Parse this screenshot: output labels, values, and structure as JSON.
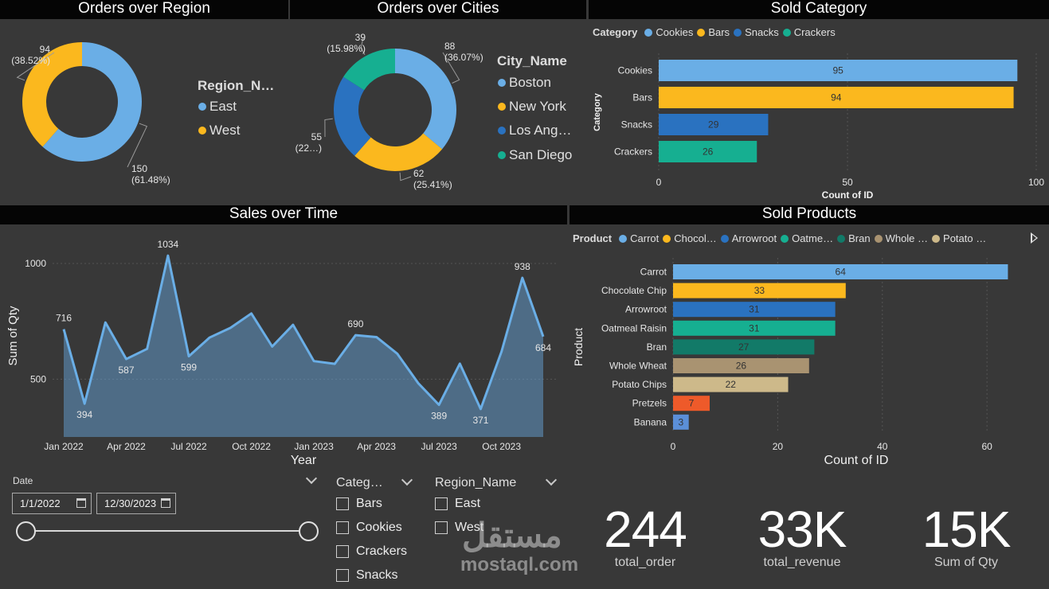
{
  "region_donut": {
    "title": "Orders over Region",
    "legend_title": "Region_N…",
    "slices": [
      {
        "name": "East",
        "value": 150,
        "pct": "(61.48%)",
        "color": "#6aaee6"
      },
      {
        "name": "West",
        "value": 94,
        "pct": "(38.52%)",
        "color": "#fbb81e"
      }
    ]
  },
  "city_donut": {
    "title": "Orders over Cities",
    "legend_title": "City_Name",
    "slices": [
      {
        "name": "Boston",
        "legend": "Boston",
        "value": 88,
        "pct": "(36.07%)",
        "color": "#6aaee6"
      },
      {
        "name": "New York",
        "legend": "New York",
        "value": 62,
        "pct": "(25.41%)",
        "color": "#fbb81e"
      },
      {
        "name": "Los Angeles",
        "legend": "Los Ang…",
        "value": 55,
        "pct": "(22…)",
        "color": "#2a72c0"
      },
      {
        "name": "San Diego",
        "legend": "San Diego",
        "value": 39,
        "pct": "(15.98%)",
        "color": "#16af91"
      }
    ]
  },
  "category_bar": {
    "title": "Sold Category",
    "legend_title": "Category",
    "legend": [
      {
        "name": "Cookies",
        "color": "#6aaee6"
      },
      {
        "name": "Bars",
        "color": "#fbb81e"
      },
      {
        "name": "Snacks",
        "color": "#2a72c0"
      },
      {
        "name": "Crackers",
        "color": "#16af91"
      }
    ],
    "ylabel": "Category",
    "xlabel": "Count of ID",
    "ticks": [
      "0",
      "50",
      "100"
    ]
  },
  "sales_area": {
    "title": "Sales over Time",
    "ylabel": "Sum of Qty",
    "xlabel": "Year",
    "yticks": [
      "1000",
      "500"
    ],
    "xticks": [
      "Jan 2022",
      "Apr 2022",
      "Jul 2022",
      "Oct 2022",
      "Jan 2023",
      "Apr 2023",
      "Jul 2023",
      "Oct 2023"
    ]
  },
  "product_bar": {
    "title": "Sold Products",
    "legend_title": "Product",
    "legend": [
      {
        "name": "Carrot",
        "color": "#6aaee6"
      },
      {
        "name": "Chocol…",
        "color": "#fbb81e"
      },
      {
        "name": "Arrowroot",
        "color": "#2a72c0"
      },
      {
        "name": "Oatme…",
        "color": "#16af91"
      },
      {
        "name": "Bran",
        "color": "#127a68"
      },
      {
        "name": "Whole …",
        "color": "#a99371"
      },
      {
        "name": "Potato …",
        "color": "#cdb98a"
      }
    ],
    "ylabel": "Product",
    "xlabel": "Count of ID",
    "ticks": [
      "0",
      "20",
      "40",
      "60"
    ]
  },
  "chart_data": [
    {
      "type": "pie",
      "title": "Orders over Region",
      "categories": [
        "East",
        "West"
      ],
      "values": [
        150,
        94
      ]
    },
    {
      "type": "pie",
      "title": "Orders over Cities",
      "categories": [
        "Boston",
        "New York",
        "Los Angeles",
        "San Diego"
      ],
      "values": [
        88,
        62,
        55,
        39
      ]
    },
    {
      "type": "bar",
      "title": "Sold Category",
      "categories": [
        "Cookies",
        "Bars",
        "Snacks",
        "Crackers"
      ],
      "values": [
        95,
        94,
        29,
        26
      ],
      "colors": [
        "#6aaee6",
        "#fbb81e",
        "#2a72c0",
        "#16af91"
      ],
      "xlabel": "Count of ID",
      "ylabel": "Category",
      "xlim": [
        0,
        100
      ]
    },
    {
      "type": "area",
      "title": "Sales over Time",
      "x": [
        "2022-01",
        "2022-02",
        "2022-03",
        "2022-04",
        "2022-05",
        "2022-06",
        "2022-07",
        "2022-08",
        "2022-09",
        "2022-10",
        "2022-11",
        "2022-12",
        "2023-01",
        "2023-02",
        "2023-03",
        "2023-04",
        "2023-05",
        "2023-06",
        "2023-07",
        "2023-08",
        "2023-09",
        "2023-10",
        "2023-11",
        "2023-12"
      ],
      "values": [
        716,
        394,
        745,
        587,
        631,
        1034,
        599,
        680,
        722,
        784,
        641,
        735,
        578,
        566,
        690,
        682,
        610,
        483,
        389,
        567,
        371,
        619,
        938,
        684
      ],
      "labeled_values": [
        716,
        394,
        587,
        1034,
        599,
        690,
        389,
        371,
        938,
        684
      ],
      "xlabel": "Year",
      "ylabel": "Sum of Qty",
      "ylim": [
        250,
        1100
      ]
    },
    {
      "type": "bar",
      "title": "Sold Products",
      "categories": [
        "Carrot",
        "Chocolate Chip",
        "Arrowroot",
        "Oatmeal Raisin",
        "Bran",
        "Whole Wheat",
        "Potato Chips",
        "Pretzels",
        "Banana"
      ],
      "values": [
        64,
        33,
        31,
        31,
        27,
        26,
        22,
        7,
        3
      ],
      "colors": [
        "#6aaee6",
        "#fbb81e",
        "#2a72c0",
        "#16af91",
        "#127a68",
        "#a99371",
        "#cdb98a",
        "#ee5a2a",
        "#5b8fd8"
      ],
      "xlabel": "Count of ID",
      "ylabel": "Product",
      "xlim": [
        0,
        65
      ]
    }
  ],
  "date_slicer": {
    "title": "Date",
    "start": "1/1/2022",
    "end": "12/30/2023"
  },
  "category_slicer": {
    "title": "Categ…",
    "items": [
      "Bars",
      "Cookies",
      "Crackers",
      "Snacks"
    ]
  },
  "region_slicer": {
    "title": "Region_Name",
    "items": [
      "East",
      "West"
    ]
  },
  "kpis": [
    {
      "value": "244",
      "label": "total_order"
    },
    {
      "value": "33K",
      "label": "total_revenue"
    },
    {
      "value": "15K",
      "label": "Sum of Qty"
    }
  ],
  "watermark": {
    "arabic": "مستقل",
    "latin": "mostaql.com"
  }
}
